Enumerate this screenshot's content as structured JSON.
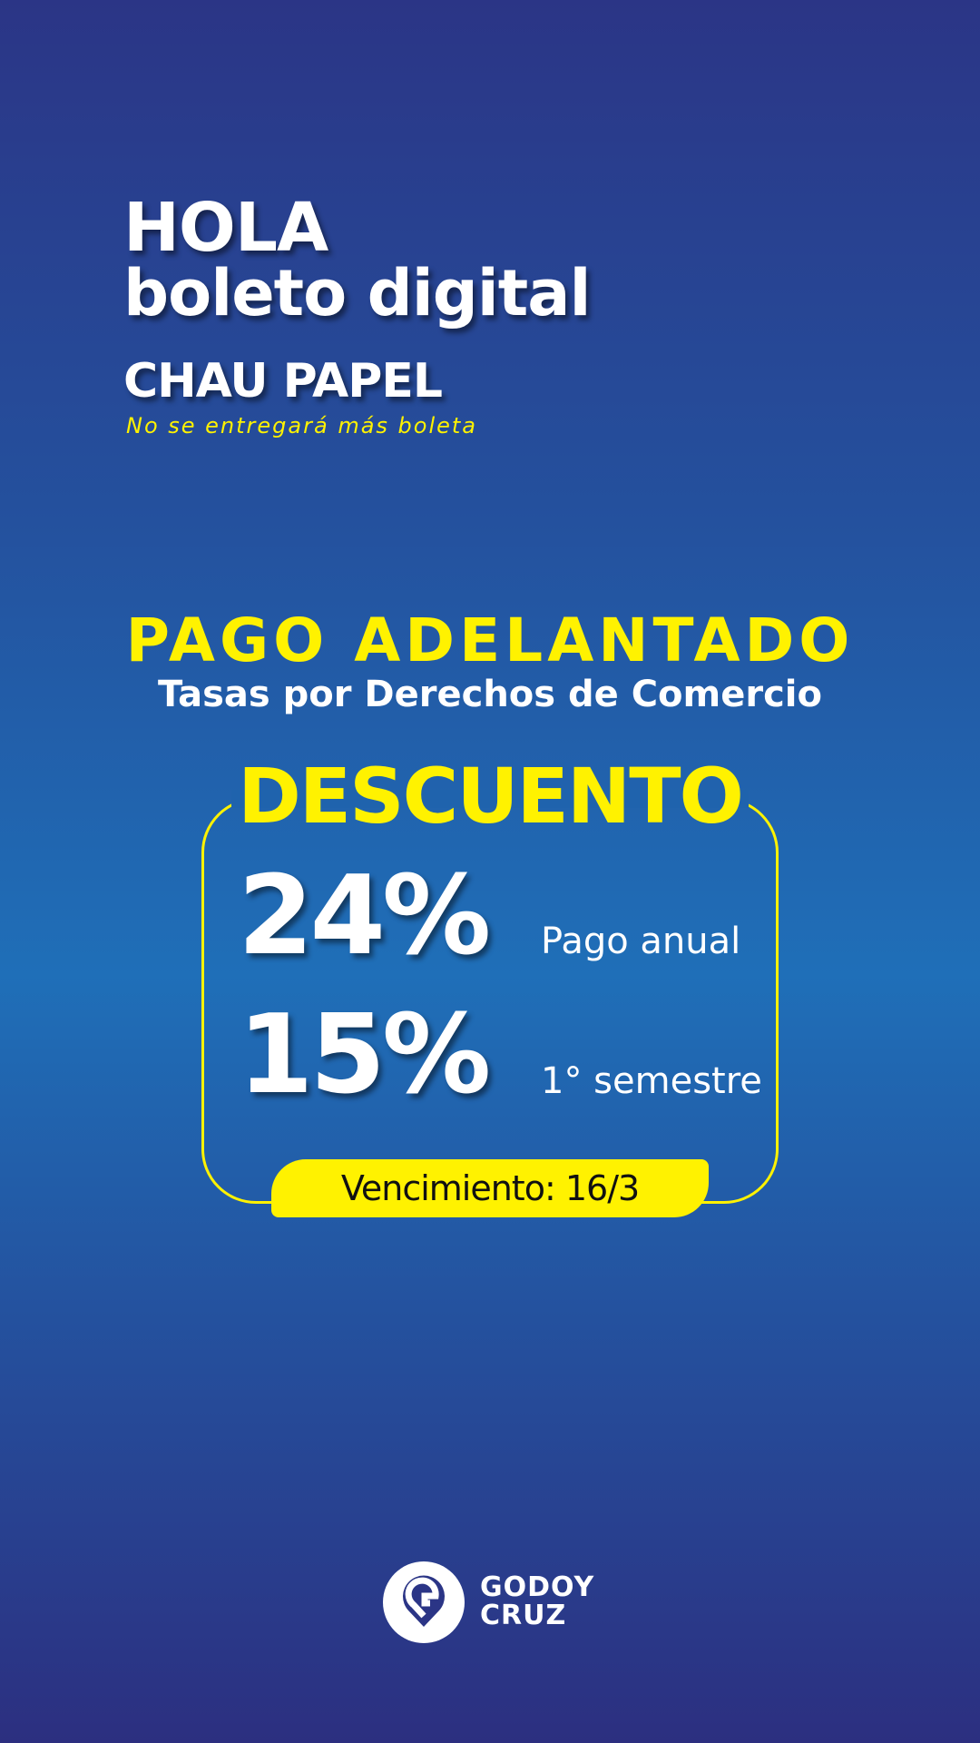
{
  "header": {
    "line1": "HOLA",
    "line2": "boleto digital",
    "line3": "CHAU PAPEL",
    "note": "No se entregará más boleta"
  },
  "promo": {
    "title": "PAGO ADELANTADO",
    "subtitle": "Tasas por Derechos de Comercio"
  },
  "discount": {
    "heading": "DESCUENTO",
    "items": [
      {
        "value": "24%",
        "label": "Pago anual"
      },
      {
        "value": "15%",
        "label": "1° semestre"
      }
    ],
    "due": "Vencimiento: 16/3"
  },
  "footer": {
    "brand_line1": "GODOY",
    "brand_line2": "CRUZ",
    "logo_icon": "map-pin-g-icon"
  },
  "colors": {
    "accent": "#fff200",
    "bg_top": "#2b3586",
    "bg_mid": "#1f6fb8",
    "bg_bottom": "#2c2f80"
  }
}
